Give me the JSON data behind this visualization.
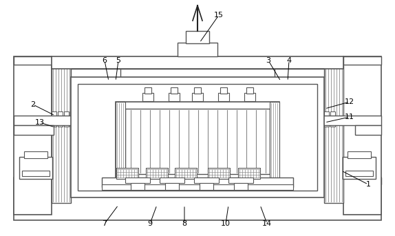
{
  "bg_color": "#ffffff",
  "lc": "#555555",
  "dc": "#222222",
  "hc": "#888888",
  "figsize": [
    5.74,
    3.43
  ],
  "dpi": 100,
  "annotations": [
    [
      "2",
      48,
      152,
      80,
      168
    ],
    [
      "13",
      58,
      178,
      80,
      185
    ],
    [
      "6",
      152,
      88,
      158,
      118
    ],
    [
      "5",
      172,
      88,
      168,
      118
    ],
    [
      "3",
      390,
      88,
      408,
      118
    ],
    [
      "4",
      420,
      88,
      418,
      118
    ],
    [
      "12",
      508,
      148,
      472,
      158
    ],
    [
      "11",
      508,
      170,
      472,
      178
    ],
    [
      "1",
      535,
      268,
      496,
      248
    ],
    [
      "7",
      152,
      325,
      172,
      298
    ],
    [
      "9",
      218,
      325,
      228,
      298
    ],
    [
      "8",
      268,
      325,
      268,
      298
    ],
    [
      "10",
      328,
      325,
      332,
      298
    ],
    [
      "14",
      388,
      325,
      378,
      298
    ],
    [
      "15",
      318,
      22,
      290,
      62
    ]
  ]
}
